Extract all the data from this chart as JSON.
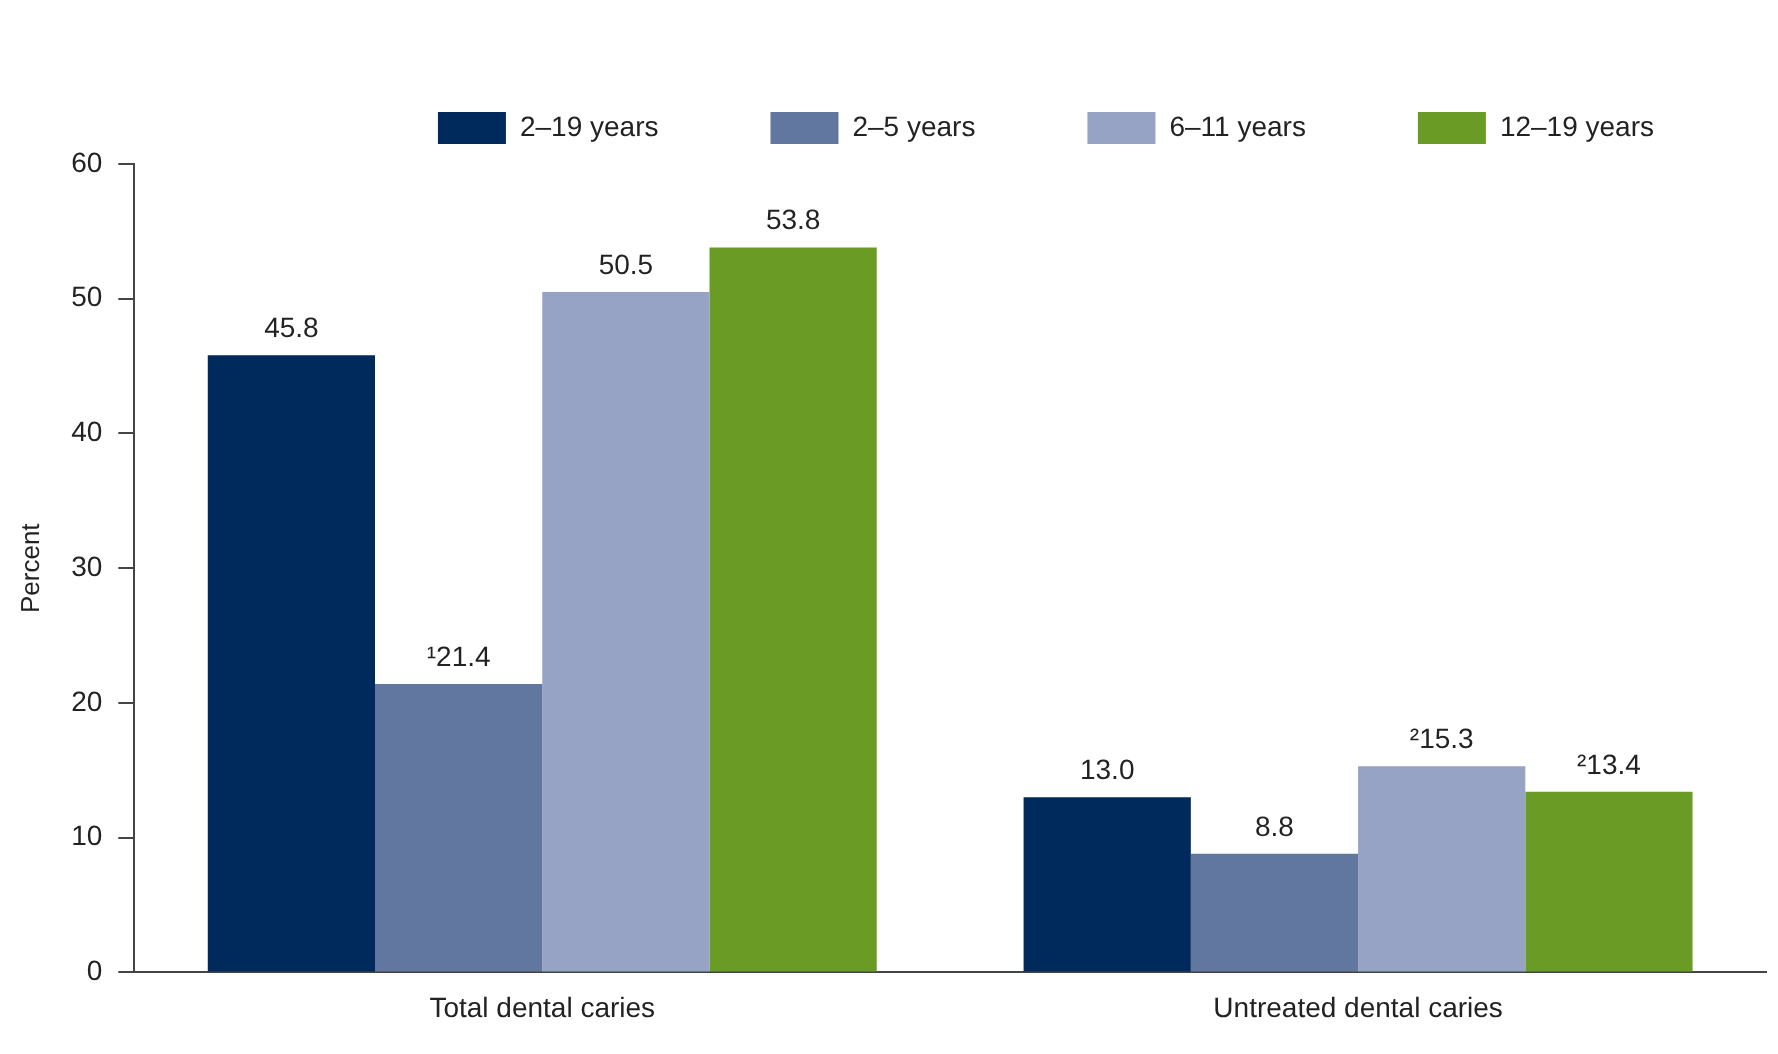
{
  "chart_data": {
    "type": "bar",
    "ylabel": "Percent",
    "categories": [
      "Total dental caries",
      "Untreated dental caries"
    ],
    "series": [
      {
        "name": "2–19 years",
        "color": "#002a5c",
        "values": [
          45.8,
          13.0
        ],
        "value_labels": [
          "45.8",
          "13.0"
        ]
      },
      {
        "name": "2–5 years",
        "color": "#62779f",
        "values": [
          21.4,
          8.8
        ],
        "value_labels": [
          "¹21.4",
          "8.8"
        ]
      },
      {
        "name": "6–11 years",
        "color": "#96a3c4",
        "values": [
          50.5,
          15.3
        ],
        "value_labels": [
          "50.5",
          "²15.3"
        ]
      },
      {
        "name": "12–19 years",
        "color": "#6a9b25",
        "values": [
          53.8,
          13.4
        ],
        "value_labels": [
          "53.8",
          "²13.4"
        ]
      }
    ],
    "ylim": [
      0,
      60
    ],
    "yticks": [
      0,
      10,
      20,
      30,
      40,
      50,
      60
    ],
    "grid": false,
    "legend": "top"
  }
}
